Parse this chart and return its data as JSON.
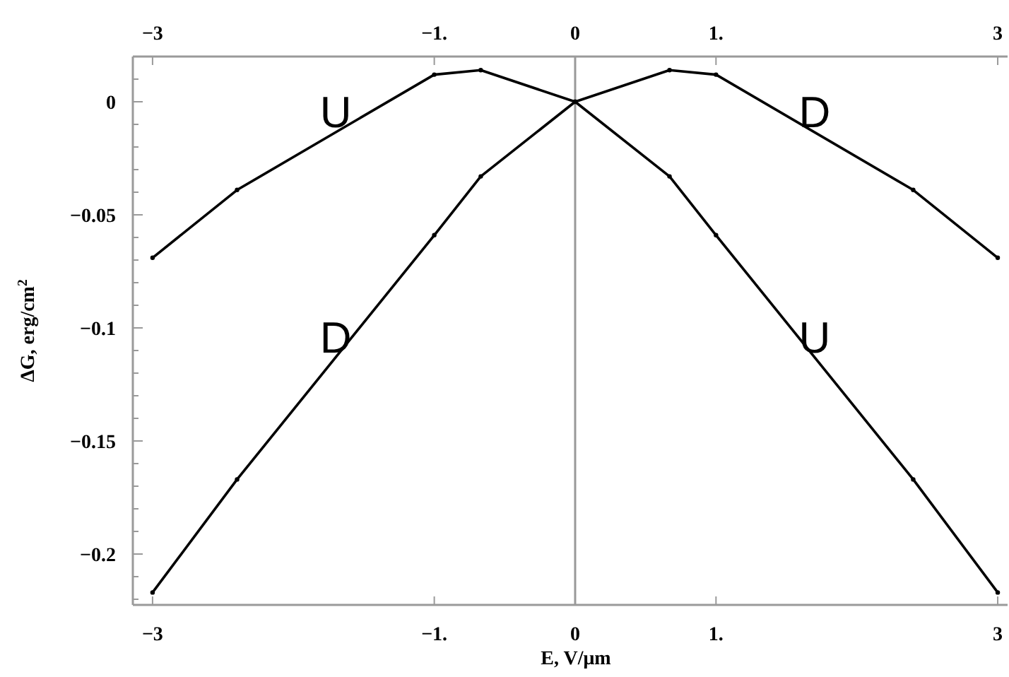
{
  "chart_data": {
    "type": "line",
    "x": [
      -3,
      -2.4,
      -1,
      -0.67,
      0,
      0.67,
      1,
      2.4,
      3
    ],
    "series": [
      {
        "name": "U",
        "color": "#000000",
        "values": [
          -0.069,
          -0.039,
          0.012,
          0.014,
          0,
          -0.033,
          -0.059,
          -0.167,
          -0.217
        ]
      },
      {
        "name": "D",
        "color": "#000000",
        "values": [
          -0.217,
          -0.167,
          -0.059,
          -0.033,
          0,
          0.014,
          0.012,
          -0.039,
          -0.069
        ]
      }
    ],
    "xlabel": "E, V/μm",
    "ylabel": "ΔG, erg/cm$^{2}$",
    "xlim": [
      -3.14,
      3.07
    ],
    "xticks": [
      {
        "value": -3,
        "label": "−3"
      },
      {
        "value": -1,
        "label": "−1."
      },
      0,
      {
        "value": 1,
        "label": "1."
      },
      3
    ],
    "x2lim": [
      -3.14,
      3.07
    ],
    "x2ticks": [
      {
        "value": -3,
        "label": "−3"
      },
      {
        "value": -1,
        "label": "−1."
      },
      0,
      {
        "value": 1,
        "label": "1."
      },
      3
    ],
    "ylim": [
      -0.2225,
      0.02
    ],
    "yticks": [
      {
        "value": 0.01,
        "label": null
      },
      0,
      {
        "value": -0.01,
        "label": null
      },
      {
        "value": -0.02,
        "label": null
      },
      {
        "value": -0.03,
        "label": null
      },
      {
        "value": -0.04,
        "label": null
      },
      {
        "value": -0.05,
        "label": "−0.05"
      },
      {
        "value": -0.06,
        "label": null
      },
      {
        "value": -0.07,
        "label": null
      },
      {
        "value": -0.08,
        "label": null
      },
      {
        "value": -0.09,
        "label": null
      },
      {
        "value": -0.1,
        "label": "−0.1"
      },
      {
        "value": -0.11,
        "label": null
      },
      {
        "value": -0.12,
        "label": null
      },
      {
        "value": -0.13,
        "label": null
      },
      {
        "value": -0.14,
        "label": null
      },
      {
        "value": -0.15,
        "label": "−0.15"
      },
      {
        "value": -0.16,
        "label": null
      },
      {
        "value": -0.17,
        "label": null
      },
      {
        "value": -0.18,
        "label": null
      },
      {
        "value": -0.19,
        "label": null
      },
      {
        "value": -0.2,
        "label": "−0.2"
      },
      {
        "value": -0.21,
        "label": null
      },
      {
        "value": -0.22,
        "label": null
      }
    ],
    "ref_lines": [
      {
        "axis": "x",
        "value": 0,
        "color": "#999999"
      }
    ],
    "marker": "circle",
    "line_style": "solid"
  }
}
